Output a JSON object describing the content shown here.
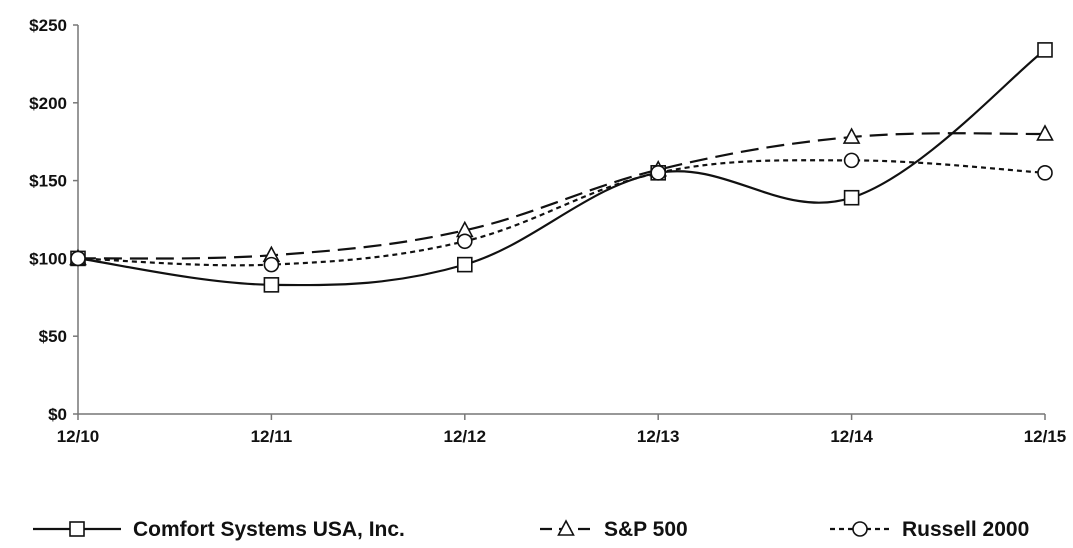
{
  "chart_data": {
    "type": "line",
    "title": "",
    "xlabel": "",
    "ylabel": "",
    "categories": [
      "12/10",
      "12/11",
      "12/12",
      "12/13",
      "12/14",
      "12/15"
    ],
    "y_tick_labels": [
      "$0",
      "$50",
      "$100",
      "$150",
      "$200",
      "$250"
    ],
    "y_ticks": [
      0,
      50,
      100,
      150,
      200,
      250
    ],
    "ylim": [
      0,
      250
    ],
    "grid": false,
    "legend_position": "bottom",
    "series": [
      {
        "name": "Comfort Systems USA, Inc.",
        "values": [
          100,
          83,
          96,
          155,
          139,
          234
        ],
        "marker": "square",
        "line_style": "solid"
      },
      {
        "name": "S&P 500",
        "values": [
          100,
          102,
          118,
          157,
          178,
          180
        ],
        "marker": "triangle",
        "line_style": "long-dash"
      },
      {
        "name": "Russell 2000",
        "values": [
          100,
          96,
          111,
          155,
          163,
          155
        ],
        "marker": "circle",
        "line_style": "short-dash"
      }
    ]
  },
  "colors": {
    "line": "#111111",
    "axis": "#777777",
    "background": "#ffffff"
  }
}
